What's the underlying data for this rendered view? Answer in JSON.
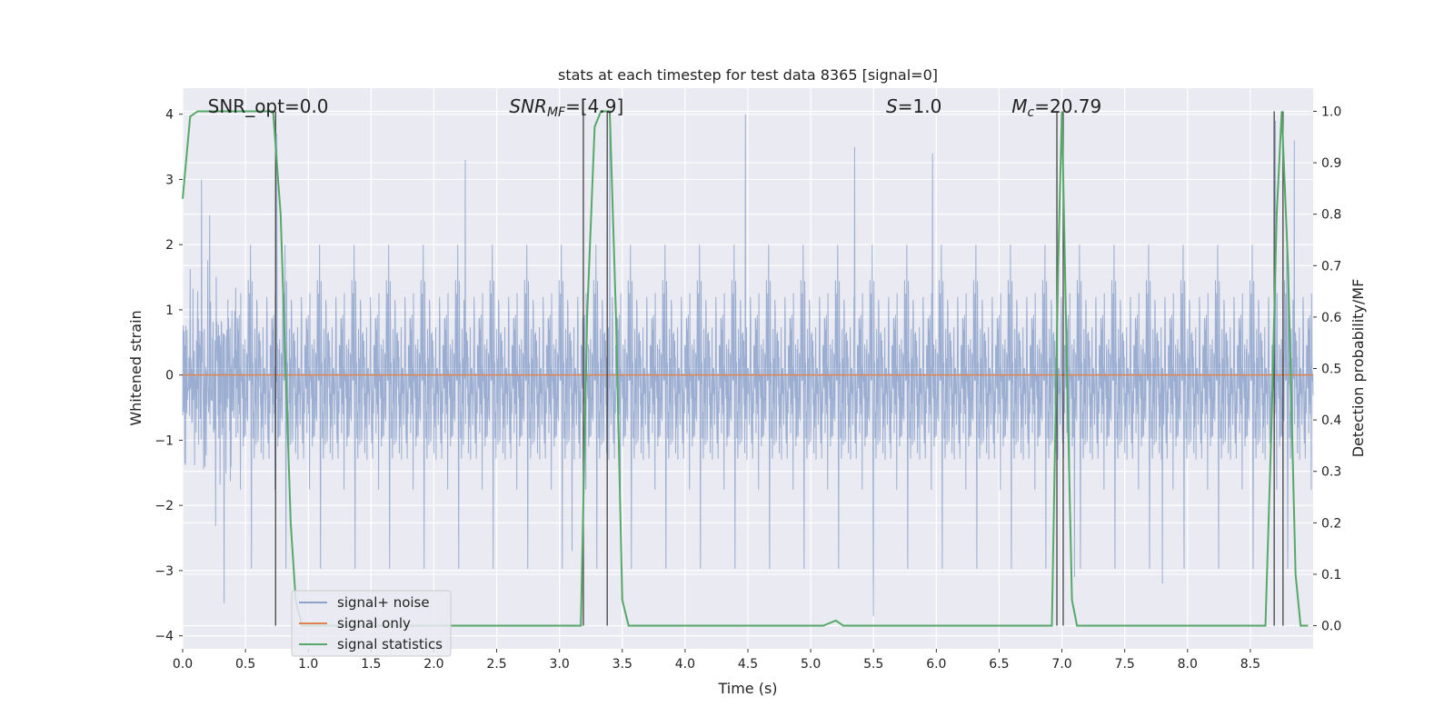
{
  "chart_data": {
    "type": "line",
    "title": "stats at each timestep for test data 8365 [signal=0]",
    "xlabel": "Time (s)",
    "ylabel": "Whitened strain",
    "ylabel_right": "Detection probability/MF",
    "xlim": [
      0.0,
      9.0
    ],
    "ylim": [
      -4.2,
      4.4
    ],
    "ylim_right": [
      -0.045,
      1.045
    ],
    "xticks": [
      0.0,
      0.5,
      1.0,
      1.5,
      2.0,
      2.5,
      3.0,
      3.5,
      4.0,
      4.5,
      5.0,
      5.5,
      6.0,
      6.5,
      7.0,
      7.5,
      8.0,
      8.5
    ],
    "xtick_labels": [
      "0.0",
      "0.5",
      "1.0",
      "1.5",
      "2.0",
      "2.5",
      "3.0",
      "3.5",
      "4.0",
      "4.5",
      "5.0",
      "5.5",
      "6.0",
      "6.5",
      "7.0",
      "7.5",
      "8.0",
      "8.5"
    ],
    "yticks": [
      4,
      3,
      2,
      1,
      0,
      -1,
      -2,
      -3,
      -4
    ],
    "ytick_labels": [
      "4",
      "3",
      "2",
      "1",
      "0",
      "−1",
      "−2",
      "−3",
      "−4"
    ],
    "yticks_right": [
      1.0,
      0.9,
      0.8,
      0.7,
      0.6,
      0.5,
      0.4,
      0.3,
      0.2,
      0.1,
      0.0
    ],
    "ytick_labels_right": [
      "1.0",
      "0.9",
      "0.8",
      "0.7",
      "0.6",
      "0.5",
      "0.4",
      "0.3",
      "0.2",
      "0.1",
      "0.0"
    ],
    "grid": true,
    "legend_position": "lower-left",
    "annotations": [
      {
        "text": "SNR_opt=0.0",
        "x": 0.2
      },
      {
        "text": "SNR_MF=[4.9]",
        "x": 2.6
      },
      {
        "text": "S=1.0",
        "x": 5.6
      },
      {
        "text": "M_c=20.79",
        "x": 6.6
      }
    ],
    "series": [
      {
        "name": "signal+ noise",
        "color": "#4c72b0",
        "kind": "noise",
        "sigma": 0.75,
        "extremes": [
          [
            0.15,
            3.0
          ],
          [
            0.33,
            -3.5
          ],
          [
            0.75,
            3.7
          ],
          [
            2.25,
            3.3
          ],
          [
            3.4,
            4.0
          ],
          [
            3.1,
            -2.7
          ],
          [
            4.48,
            4.0
          ],
          [
            5.35,
            3.5
          ],
          [
            5.5,
            -3.7
          ],
          [
            5.97,
            3.4
          ],
          [
            7.1,
            -3.1
          ],
          [
            7.8,
            -3.2
          ],
          [
            8.7,
            3.9
          ],
          [
            8.85,
            3.6
          ]
        ]
      },
      {
        "name": "signal only",
        "color": "#dd8452",
        "values": [
          [
            0.0,
            0.0
          ],
          [
            9.0,
            0.0
          ]
        ]
      },
      {
        "name": "signal statistics",
        "color": "#55a868",
        "axis": "right",
        "values": [
          [
            0.0,
            0.83
          ],
          [
            0.06,
            0.99
          ],
          [
            0.12,
            1.0
          ],
          [
            0.72,
            1.0
          ],
          [
            0.78,
            0.8
          ],
          [
            0.82,
            0.5
          ],
          [
            0.86,
            0.2
          ],
          [
            0.9,
            0.05
          ],
          [
            0.95,
            0.0
          ],
          [
            3.17,
            0.0
          ],
          [
            3.22,
            0.6
          ],
          [
            3.28,
            0.97
          ],
          [
            3.33,
            1.0
          ],
          [
            3.4,
            1.0
          ],
          [
            3.45,
            0.6
          ],
          [
            3.5,
            0.05
          ],
          [
            3.55,
            0.0
          ],
          [
            5.1,
            0.0
          ],
          [
            5.2,
            0.01
          ],
          [
            5.26,
            0.0
          ],
          [
            6.92,
            0.0
          ],
          [
            6.97,
            0.7
          ],
          [
            7.0,
            1.0
          ],
          [
            7.04,
            0.5
          ],
          [
            7.08,
            0.05
          ],
          [
            7.12,
            0.0
          ],
          [
            8.62,
            0.0
          ],
          [
            8.67,
            0.4
          ],
          [
            8.71,
            0.8
          ],
          [
            8.75,
            1.0
          ],
          [
            8.8,
            0.7
          ],
          [
            8.86,
            0.1
          ],
          [
            8.9,
            0.0
          ],
          [
            8.96,
            0.0
          ]
        ]
      }
    ],
    "vlines": [
      0.74,
      3.19,
      3.38,
      6.96,
      7.01,
      8.69,
      8.76
    ]
  }
}
